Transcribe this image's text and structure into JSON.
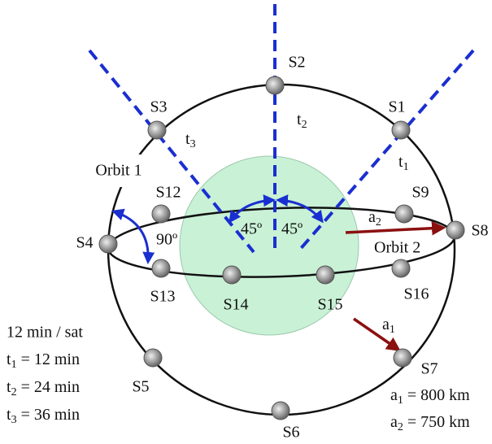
{
  "satellites": [
    "S1",
    "S2",
    "S3",
    "S4",
    "S5",
    "S6",
    "S7",
    "S8",
    "S9",
    "S12",
    "S13",
    "S14",
    "S15",
    "S16"
  ],
  "orbits": [
    "Orbit 1",
    "Orbit 2"
  ],
  "angles": [
    "45º",
    "45º",
    "90º"
  ],
  "intervals": [
    {
      "name": "t",
      "sub": "1"
    },
    {
      "name": "t",
      "sub": "2"
    },
    {
      "name": "t",
      "sub": "3"
    }
  ],
  "vectors": [
    {
      "name": "a",
      "sub": "1"
    },
    {
      "name": "a",
      "sub": "2"
    }
  ],
  "timing": {
    "rate": "12 min / sat",
    "items": [
      {
        "name": "t",
        "sub": "1",
        "value": "= 12 min"
      },
      {
        "name": "t",
        "sub": "2",
        "value": "= 24 min"
      },
      {
        "name": "t",
        "sub": "3",
        "value": "= 36 min"
      }
    ]
  },
  "altitudes": [
    {
      "name": "a",
      "sub": "1",
      "value": "= 800 km"
    },
    {
      "name": "a",
      "sub": "2",
      "value": "= 750 km"
    }
  ]
}
